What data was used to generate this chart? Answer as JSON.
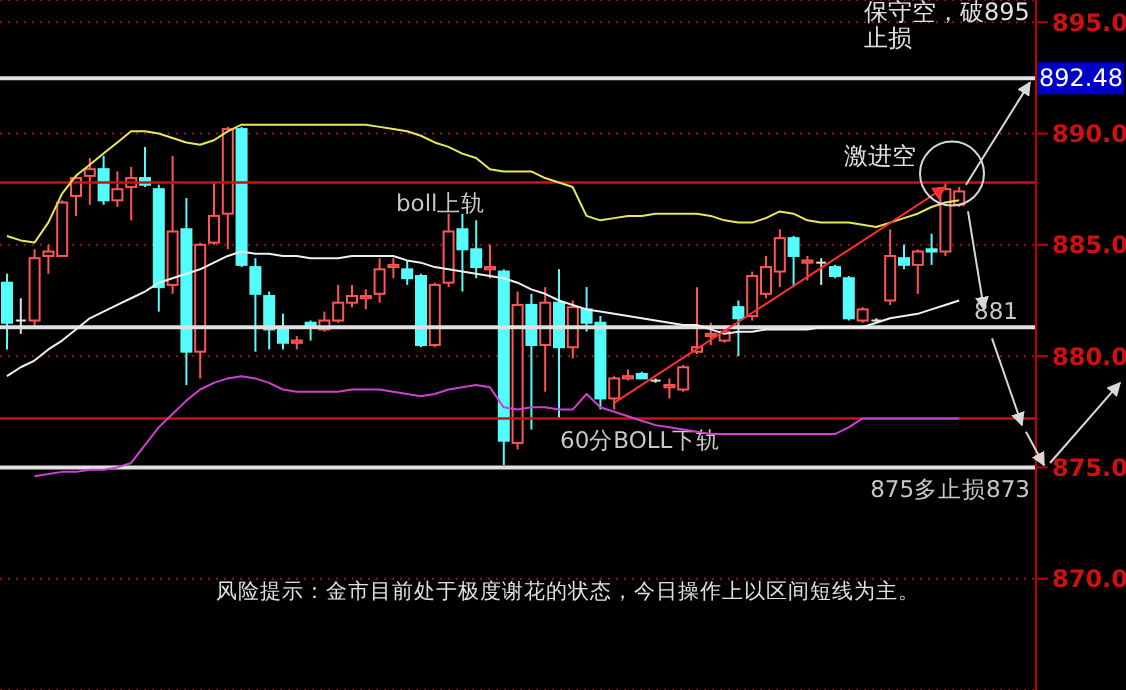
{
  "chart_data": {
    "type": "candlestick",
    "categories": [
      null,
      null,
      null,
      null,
      null,
      null,
      null,
      null,
      null,
      null,
      null,
      null,
      null,
      null,
      null,
      null,
      null,
      null,
      null,
      null,
      null,
      null,
      null,
      null,
      null,
      null,
      null,
      null,
      null,
      null,
      null,
      null,
      null,
      null,
      null,
      null,
      null,
      null,
      null,
      null,
      null,
      null,
      null,
      null,
      null,
      null,
      null,
      null,
      null,
      null,
      null,
      null,
      null,
      null,
      null,
      null,
      null,
      null,
      null,
      null,
      null,
      null,
      null,
      null,
      null,
      null,
      null,
      null,
      null,
      null
    ],
    "ohlc": [
      [
        883.3,
        883.7,
        880.3,
        881.5
      ],
      [
        881.6,
        882.6,
        881.0,
        881.6
      ],
      [
        881.6,
        884.8,
        881.3,
        884.4
      ],
      [
        884.5,
        885.0,
        883.7,
        884.7
      ],
      [
        884.5,
        887.0,
        884.5,
        886.9
      ],
      [
        887.2,
        888.1,
        886.3,
        888.0
      ],
      [
        888.1,
        888.9,
        886.8,
        888.4
      ],
      [
        888.4,
        889.0,
        886.8,
        887.0
      ],
      [
        887.0,
        888.3,
        886.7,
        887.5
      ],
      [
        887.6,
        888.5,
        886.1,
        888.0
      ],
      [
        888.0,
        889.4,
        887.6,
        887.7
      ],
      [
        887.5,
        887.7,
        882.0,
        883.1
      ],
      [
        883.2,
        889.0,
        882.8,
        885.6
      ],
      [
        885.7,
        887.1,
        878.7,
        880.2
      ],
      [
        880.2,
        885.1,
        879.0,
        885.0
      ],
      [
        885.1,
        887.8,
        885.0,
        886.3
      ],
      [
        886.4,
        890.3,
        884.8,
        890.2
      ],
      [
        890.2,
        890.3,
        884.0,
        884.1
      ],
      [
        884.0,
        884.4,
        880.2,
        882.8
      ],
      [
        882.7,
        882.9,
        880.3,
        881.2
      ],
      [
        881.2,
        881.9,
        880.3,
        880.6
      ],
      [
        880.6,
        880.9,
        880.3,
        880.7
      ],
      [
        881.5,
        881.6,
        880.7,
        881.4
      ],
      [
        881.2,
        882.0,
        881.1,
        881.6
      ],
      [
        881.6,
        883.2,
        881.5,
        882.4
      ],
      [
        882.4,
        883.2,
        882.2,
        882.7
      ],
      [
        882.6,
        883.0,
        882.1,
        882.7
      ],
      [
        882.8,
        884.4,
        882.4,
        883.9
      ],
      [
        884.0,
        884.4,
        883.5,
        884.1
      ],
      [
        883.9,
        884.3,
        883.2,
        883.5
      ],
      [
        883.6,
        883.7,
        880.4,
        880.5
      ],
      [
        880.5,
        883.3,
        880.4,
        883.2
      ],
      [
        883.3,
        886.4,
        883.1,
        885.6
      ],
      [
        885.7,
        886.4,
        882.9,
        884.8
      ],
      [
        884.8,
        886.1,
        883.5,
        884.0
      ],
      [
        883.9,
        885.0,
        883.5,
        884.0
      ],
      [
        883.8,
        883.9,
        875.1,
        876.2
      ],
      [
        876.1,
        882.9,
        875.8,
        882.3
      ],
      [
        882.3,
        882.8,
        876.7,
        880.5
      ],
      [
        880.5,
        883.1,
        878.4,
        882.4
      ],
      [
        882.4,
        883.9,
        877.2,
        880.4
      ],
      [
        880.4,
        882.5,
        879.9,
        882.2
      ],
      [
        882.1,
        883.1,
        881.1,
        881.5
      ],
      [
        881.5,
        881.8,
        877.6,
        878.1
      ],
      [
        878.1,
        879.1,
        877.6,
        879.0
      ],
      [
        879.0,
        879.4,
        878.9,
        879.1
      ],
      [
        879.2,
        879.3,
        879.0,
        879.0
      ],
      [
        878.9,
        879.0,
        878.8,
        878.9
      ],
      [
        878.6,
        879.0,
        878.1,
        878.7
      ],
      [
        878.5,
        879.6,
        878.4,
        879.5
      ],
      [
        880.2,
        883.1,
        880.1,
        880.4
      ],
      [
        880.9,
        881.5,
        880.5,
        881.0
      ],
      [
        880.7,
        881.2,
        880.6,
        881.1
      ],
      [
        882.2,
        882.5,
        880.0,
        881.7
      ],
      [
        881.8,
        883.8,
        881.6,
        883.6
      ],
      [
        882.8,
        884.5,
        882.6,
        884.0
      ],
      [
        883.8,
        885.7,
        883.1,
        885.3
      ],
      [
        885.3,
        885.4,
        883.1,
        884.5
      ],
      [
        884.2,
        884.5,
        883.4,
        884.3
      ],
      [
        884.2,
        884.4,
        883.2,
        884.2
      ],
      [
        884.0,
        884.1,
        883.5,
        883.6
      ],
      [
        883.5,
        883.6,
        881.6,
        881.7
      ],
      [
        881.6,
        882.2,
        881.5,
        882.1
      ],
      [
        881.6,
        881.7,
        881.5,
        881.6
      ],
      [
        882.5,
        885.7,
        882.3,
        884.5
      ],
      [
        884.4,
        885.0,
        883.9,
        884.1
      ],
      [
        884.1,
        884.8,
        882.8,
        884.7
      ],
      [
        884.8,
        885.5,
        884.1,
        884.7
      ],
      [
        884.7,
        887.8,
        884.5,
        887.5
      ],
      [
        886.8,
        887.6,
        886.7,
        887.4
      ]
    ],
    "colors": [
      "#54fcfc",
      "#e0e0e0",
      "#ff5555",
      "#ff5555",
      "#ff5555",
      "#ff5555",
      "#ff5555",
      "#54fcfc",
      "#ff5555",
      "#ff5555",
      "#54fcfc",
      "#54fcfc",
      "#ff5555",
      "#54fcfc",
      "#ff5555",
      "#ff5555",
      "#ff5555",
      "#54fcfc",
      "#54fcfc",
      "#54fcfc",
      "#54fcfc",
      "#ff5555",
      "#54fcfc",
      "#ff5555",
      "#ff5555",
      "#ff5555",
      "#ff5555",
      "#ff5555",
      "#ff5555",
      "#54fcfc",
      "#54fcfc",
      "#ff5555",
      "#ff5555",
      "#54fcfc",
      "#54fcfc",
      "#ff5555",
      "#54fcfc",
      "#ff5555",
      "#54fcfc",
      "#ff5555",
      "#54fcfc",
      "#ff5555",
      "#54fcfc",
      "#54fcfc",
      "#ff5555",
      "#ff5555",
      "#54fcfc",
      "#e0e0e0",
      "#ff5555",
      "#ff5555",
      "#ff5555",
      "#ff5555",
      "#ff5555",
      "#54fcfc",
      "#ff5555",
      "#ff5555",
      "#ff5555",
      "#54fcfc",
      "#ff5555",
      "#e0e0e0",
      "#54fcfc",
      "#54fcfc",
      "#ff5555",
      "#e0e0e0",
      "#ff5555",
      "#54fcfc",
      "#ff5555",
      "#54fcfc",
      "#ff5555",
      "#ff5555"
    ],
    "series": [
      {
        "type": "line",
        "color": "#e8e85a",
        "values": [
          885.4,
          885.2,
          885.1,
          886.0,
          887.3,
          888.1,
          888.6,
          889.1,
          889.6,
          890.1,
          890.1,
          890.0,
          889.8,
          889.6,
          889.5,
          889.7,
          890.1,
          890.4,
          890.4,
          890.4,
          890.4,
          890.4,
          890.4,
          890.4,
          890.4,
          890.4,
          890.4,
          890.3,
          890.2,
          890.1,
          889.9,
          889.6,
          889.4,
          889.1,
          888.9,
          888.4,
          888.3,
          888.3,
          888.3,
          888.0,
          887.8,
          887.6,
          886.3,
          886.1,
          886.2,
          886.3,
          886.3,
          886.4,
          886.4,
          886.4,
          886.4,
          886.3,
          886.1,
          886.0,
          886.0,
          886.2,
          886.5,
          886.4,
          886.1,
          886.0,
          886.0,
          886.0,
          885.9,
          885.8,
          886.0,
          886.2,
          886.4,
          886.7,
          886.9,
          887.0
        ]
      },
      {
        "type": "line",
        "color": "#f0f0f0",
        "values": [
          879.1,
          879.5,
          879.8,
          880.3,
          880.7,
          881.2,
          881.7,
          882.0,
          882.3,
          882.6,
          882.9,
          883.3,
          883.5,
          883.7,
          883.9,
          884.2,
          884.5,
          884.7,
          884.6,
          884.6,
          884.5,
          884.5,
          884.4,
          884.4,
          884.4,
          884.5,
          884.5,
          884.5,
          884.5,
          884.3,
          884.2,
          884.0,
          883.9,
          883.8,
          883.7,
          883.6,
          883.5,
          883.3,
          883.0,
          882.8,
          882.5,
          882.3,
          882.1,
          882.0,
          881.9,
          881.8,
          881.7,
          881.6,
          881.5,
          881.4,
          881.4,
          881.2,
          881.0,
          881.1,
          881.1,
          881.2,
          881.2,
          881.2,
          881.2,
          881.3,
          881.3,
          881.3,
          881.3,
          881.5,
          881.7,
          881.8,
          881.9,
          882.1,
          882.3,
          882.5
        ]
      },
      {
        "type": "line",
        "color": "#d040d0",
        "values": [
          null,
          null,
          874.6,
          874.7,
          874.8,
          874.8,
          874.9,
          874.9,
          875.0,
          875.2,
          876.0,
          876.8,
          877.4,
          878.0,
          878.5,
          878.8,
          879.0,
          879.1,
          879.0,
          878.8,
          878.5,
          878.4,
          878.4,
          878.4,
          878.4,
          878.5,
          878.5,
          878.5,
          878.4,
          878.3,
          878.2,
          878.3,
          878.5,
          878.6,
          878.7,
          878.6,
          877.7,
          877.6,
          877.7,
          877.7,
          877.6,
          877.6,
          878.3,
          877.7,
          877.5,
          877.3,
          877.1,
          876.9,
          876.8,
          876.7,
          876.6,
          876.5,
          876.5,
          876.5,
          876.5,
          876.5,
          876.5,
          876.5,
          876.5,
          876.5,
          876.5,
          876.8,
          877.2,
          877.2,
          877.2,
          877.2,
          877.2,
          877.2,
          877.2,
          877.2
        ]
      }
    ],
    "ylim": [
      865,
      896
    ],
    "yticks": [
      {
        "value": 870,
        "label": "870.0"
      },
      {
        "value": 875,
        "label": "875.0"
      },
      {
        "value": 880,
        "label": "880.0"
      },
      {
        "value": 885,
        "label": "885.0"
      },
      {
        "value": 890,
        "label": "890.0"
      },
      {
        "value": 895,
        "label": "895.0"
      }
    ],
    "grid": "y",
    "tick_labels": "y",
    "ref_lines": [
      {
        "axis": "y",
        "value": 892.48,
        "label": "892.48",
        "color": "#e0e0e0"
      },
      {
        "axis": "y",
        "value": 887.8,
        "label": "boll上轨",
        "color": "#d01010"
      },
      {
        "axis": "y",
        "value": 881.3,
        "label": "881",
        "color": "#e0e0e0"
      },
      {
        "axis": "y",
        "value": 877.2,
        "label": "60分BOLL下轨",
        "color": "#d01010"
      },
      {
        "axis": "y",
        "value": 875,
        "label": "875多止损873",
        "color": "#e0e0e0"
      }
    ],
    "annotations": [
      "保守空，破895止损",
      "激进空",
      "风险提示：金市目前处于极度谢花的状态，今日操作上以区间短线为主。"
    ]
  }
}
